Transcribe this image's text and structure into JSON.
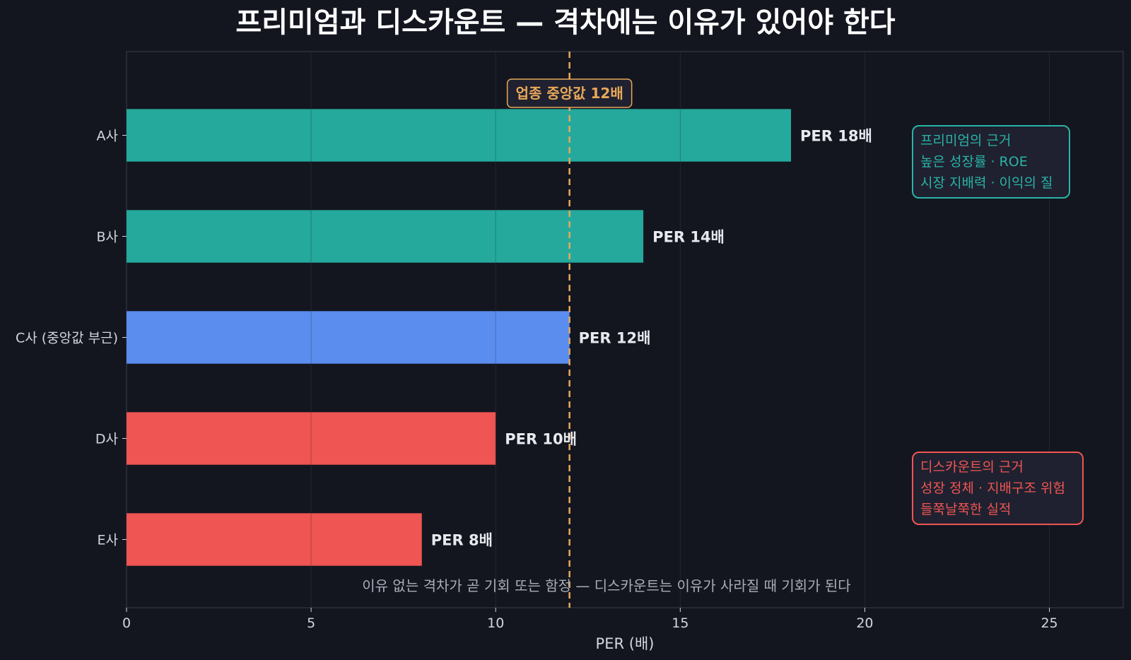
{
  "chart_data": {
    "type": "bar",
    "orientation": "horizontal",
    "title": "프리미엄과 디스카운트 — 격차에는 이유가 있어야 한다",
    "xlabel": "PER (배)",
    "ylabel": "",
    "xlim": [
      0,
      27
    ],
    "xticks": [
      0,
      5,
      10,
      15,
      20,
      25
    ],
    "grid": "vertical",
    "categories": [
      "A사",
      "B사",
      "C사 (중앙값 부근)",
      "D사",
      "E사"
    ],
    "values": [
      18,
      14,
      12,
      10,
      8
    ],
    "value_labels": [
      "PER 18배",
      "PER 14배",
      "PER 12배",
      "PER 10배",
      "PER 8배"
    ],
    "bar_colors": [
      "#24a99c",
      "#24a99c",
      "#5b8def",
      "#ef5552",
      "#ef5552"
    ],
    "reference_line": {
      "value": 12,
      "label": "업종 중앙값 12배",
      "color": "#e8a85a"
    },
    "annotations": [
      {
        "lines": [
          "프리미엄의 근거",
          "높은 성장률 · ROE",
          "시장 지배력 · 이익의 질"
        ],
        "color": "#2ab3a6"
      },
      {
        "lines": [
          "디스카운트의 근거",
          "성장 정체 · 지배구조 위험",
          "들쭉날쭉한 실적"
        ],
        "color": "#ef5552"
      }
    ],
    "footnote": "이유 없는 격차가 곧 기회 또는 함정 — 디스카운트는 이유가 사라질 때 기회가 된다"
  },
  "colors": {
    "background": "#13161f",
    "plot_border": "#3a3f4b",
    "grid": "#262b36",
    "text": "#e7e9ee",
    "axis_text": "#d3d6dd",
    "muted_text": "#a9adb8",
    "annotation_bg": "#1f2130"
  }
}
